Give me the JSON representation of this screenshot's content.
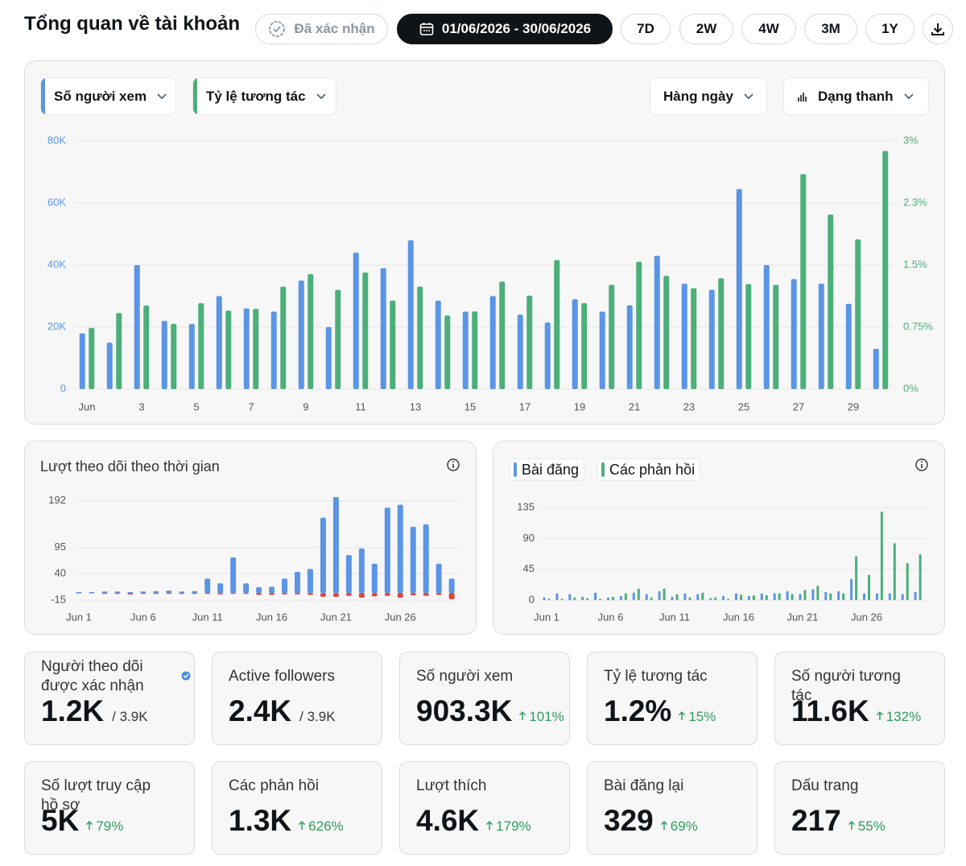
{
  "header": {
    "title": "Tổng quan về tài khoản",
    "verified": "Đã xác nhận",
    "date_range": "01/06/2026 - 30/06/2026",
    "ranges": [
      "7D",
      "2W",
      "4W",
      "3M",
      "1Y"
    ]
  },
  "chart_controls": {
    "interval": "Hàng ngày",
    "chart_style": "Dạng thanh"
  },
  "chart_data": [
    {
      "type": "bar",
      "barmode": "group",
      "categories": [
        "Jun",
        null,
        "3",
        null,
        "5",
        null,
        "7",
        null,
        "9",
        null,
        "11",
        null,
        "13",
        null,
        "15",
        null,
        "17",
        null,
        "19",
        null,
        "21",
        null,
        "23",
        null,
        "25",
        null,
        "27",
        null,
        "29",
        null
      ],
      "series": [
        {
          "name": "Số người xem",
          "color": "#5b95e5",
          "values": [
            18000,
            15000,
            40000,
            22000,
            21000,
            30000,
            26000,
            25000,
            35000,
            20000,
            44000,
            39000,
            48000,
            28500,
            25000,
            30000,
            24000,
            21500,
            29000,
            25000,
            27000,
            43000,
            34000,
            32000,
            64500,
            40000,
            35500,
            34000,
            27500,
            13000
          ]
        },
        {
          "name": "Tỷ lệ tương tác",
          "color": "#4caf7a",
          "axis": "y2",
          "values": [
            0.74,
            0.92,
            1.01,
            0.79,
            1.04,
            0.95,
            0.97,
            1.24,
            1.39,
            1.2,
            1.41,
            1.07,
            1.24,
            0.89,
            0.94,
            1.3,
            1.13,
            1.56,
            1.04,
            1.26,
            1.54,
            1.37,
            1.22,
            1.34,
            1.27,
            1.26,
            2.6,
            2.11,
            1.81,
            2.88
          ]
        }
      ],
      "ylim": [
        0,
        80000
      ],
      "yticks": [
        0,
        {
          "value": 20000,
          "label": "20K"
        },
        {
          "value": 40000,
          "label": "40K"
        },
        {
          "value": 60000,
          "label": "60K"
        },
        {
          "value": 80000,
          "label": "80K"
        }
      ],
      "y2lim": [
        0,
        3
      ],
      "y2ticks": [
        {
          "value": 0,
          "label": "0%"
        },
        {
          "value": 0.75,
          "label": "0.75%"
        },
        {
          "value": 1.5,
          "label": "1.5%"
        },
        {
          "value": 2.25,
          "label": "2.3%"
        },
        {
          "value": 3,
          "label": "3%"
        }
      ],
      "grid": true
    },
    {
      "type": "bar",
      "barmode": "relative",
      "title": "Lượt theo dõi theo thời gian",
      "categories": [
        "Jun 1",
        null,
        null,
        null,
        null,
        "Jun 6",
        null,
        null,
        null,
        null,
        "Jun 11",
        null,
        null,
        null,
        null,
        "Jun 16",
        null,
        null,
        null,
        null,
        "Jun 21",
        null,
        null,
        null,
        null,
        "Jun 26",
        null,
        null,
        null,
        null
      ],
      "series": [
        {
          "color": "#5b95e5",
          "values": [
            2,
            2,
            3,
            3,
            2,
            3,
            4,
            5,
            3,
            4,
            30,
            20,
            74,
            20,
            12,
            13,
            30,
            44,
            50,
            157,
            200,
            79,
            93,
            61,
            178,
            184,
            138,
            143,
            61,
            30
          ]
        },
        {
          "color": "#e0443e",
          "values": [
            -1,
            -1,
            -2,
            -2,
            -3,
            -2,
            -2,
            -2,
            -2,
            -2,
            -2,
            -3,
            -2,
            -2,
            -4,
            -4,
            -3,
            -3,
            -4,
            -8,
            -8,
            -6,
            -10,
            -7,
            -6,
            -10,
            -5,
            -6,
            -4,
            -13
          ]
        }
      ],
      "ylim": [
        -15,
        200
      ],
      "yticks": [
        192,
        95,
        40,
        -15
      ],
      "grid": true
    },
    {
      "type": "bar",
      "barmode": "group",
      "categories": [
        "Jun 1",
        null,
        null,
        null,
        null,
        "Jun 6",
        null,
        null,
        null,
        null,
        "Jun 11",
        null,
        null,
        null,
        null,
        "Jun 16",
        null,
        null,
        null,
        null,
        "Jun 21",
        null,
        null,
        null,
        null,
        "Jun 26",
        null,
        null,
        null,
        null
      ],
      "series": [
        {
          "name": "Bài đăng",
          "color": "#5b95e5",
          "values": [
            4,
            10,
            9,
            5,
            11,
            4,
            6,
            11,
            9,
            13,
            5,
            10,
            9,
            3,
            6,
            10,
            6,
            10,
            10,
            13,
            9,
            16,
            12,
            13,
            31,
            10,
            10,
            10,
            9,
            12
          ]
        },
        {
          "name": "Các phản hồi",
          "color": "#4caf7a",
          "values": [
            2,
            2,
            4,
            3,
            2,
            5,
            10,
            17,
            4,
            17,
            9,
            4,
            11,
            4,
            2,
            8,
            7,
            7,
            10,
            9,
            15,
            21,
            10,
            10,
            64,
            37,
            129,
            83,
            54,
            67
          ]
        }
      ],
      "ylim": [
        0,
        135
      ],
      "yticks": [
        0,
        45,
        90,
        135
      ],
      "grid": true
    }
  ],
  "stats": [
    {
      "label": "Người theo dõi được xác nhận",
      "value": "1.2K",
      "total": "/ 3.9K"
    },
    {
      "label": "Active followers",
      "value": "2.4K",
      "total": "/ 3.9K"
    },
    {
      "label": "Số người xem",
      "value": "903.3K",
      "change": "101%"
    },
    {
      "label": "Tỷ lệ tương tác",
      "value": "1.2%",
      "change": "15%"
    },
    {
      "label": "Số người tương tác",
      "value": "11.6K",
      "change": "132%"
    },
    {
      "label": "Số lượt truy cập hồ sơ",
      "value": "5K",
      "change": "79%"
    },
    {
      "label": "Các phản hồi",
      "value": "1.3K",
      "change": "626%"
    },
    {
      "label": "Lượt thích",
      "value": "4.6K",
      "change": "179%"
    },
    {
      "label": "Bài đăng lại",
      "value": "329",
      "change": "69%"
    },
    {
      "label": "Dấu trang",
      "value": "217",
      "change": "55%"
    }
  ]
}
